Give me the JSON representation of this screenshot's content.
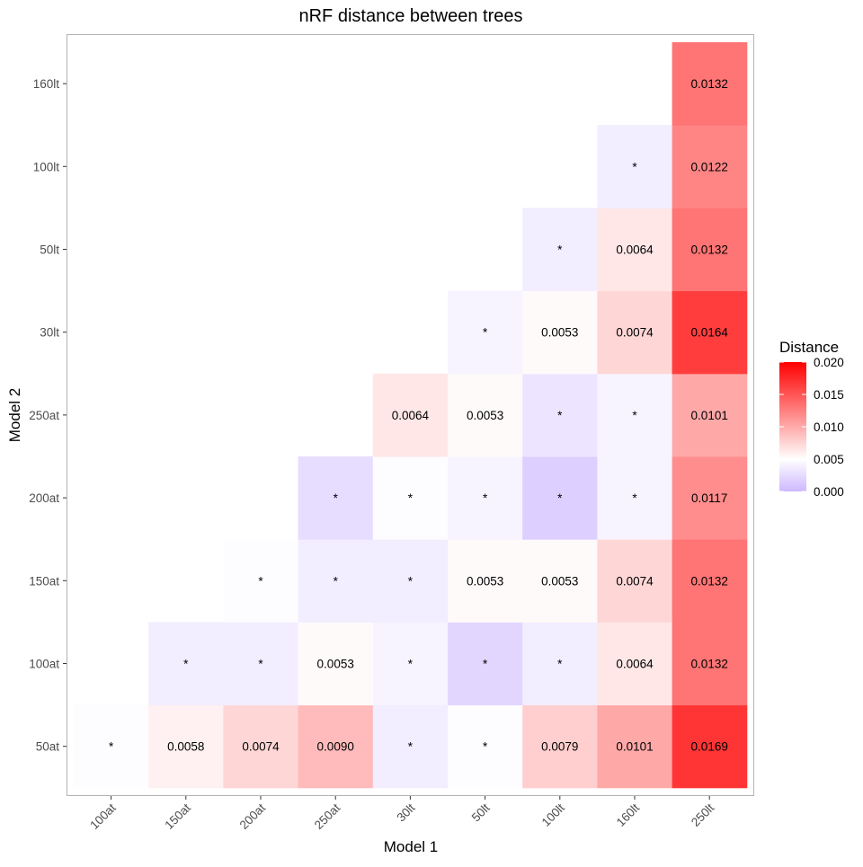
{
  "chart_data": {
    "type": "heatmap",
    "title": "nRF distance between trees",
    "xlabel": "Model 1",
    "ylabel": "Model 2",
    "x_categories": [
      "100at",
      "150at",
      "200at",
      "250at",
      "30lt",
      "50lt",
      "100lt",
      "160lt",
      "250lt"
    ],
    "y_categories": [
      "50at",
      "100at",
      "150at",
      "200at",
      "250at",
      "30lt",
      "50lt",
      "100lt",
      "160lt"
    ],
    "grid": false,
    "legend": {
      "title": "Distance",
      "position": "right",
      "ticks": [
        "0.000",
        "0.005",
        "0.010",
        "0.015",
        "0.020"
      ],
      "min": 0.0,
      "max": 0.02,
      "colors": {
        "low": "#cdb8ff",
        "mid": "#ffffff",
        "high": "#ff0000"
      }
    },
    "significance_label": "*",
    "cells": [
      {
        "x": "100at",
        "y": "50at",
        "value": 0.0048,
        "label": "*"
      },
      {
        "x": "150at",
        "y": "50at",
        "value": 0.0058,
        "label": "0.0058"
      },
      {
        "x": "200at",
        "y": "50at",
        "value": 0.0074,
        "label": "0.0074"
      },
      {
        "x": "250at",
        "y": "50at",
        "value": 0.009,
        "label": "0.0090"
      },
      {
        "x": "30lt",
        "y": "50at",
        "value": 0.0037,
        "label": "*"
      },
      {
        "x": "50lt",
        "y": "50at",
        "value": 0.0048,
        "label": "*"
      },
      {
        "x": "100lt",
        "y": "50at",
        "value": 0.0079,
        "label": "0.0079"
      },
      {
        "x": "160lt",
        "y": "50at",
        "value": 0.0101,
        "label": "0.0101"
      },
      {
        "x": "250lt",
        "y": "50at",
        "value": 0.0169,
        "label": "0.0169"
      },
      {
        "x": "150at",
        "y": "100at",
        "value": 0.0037,
        "label": "*"
      },
      {
        "x": "200at",
        "y": "100at",
        "value": 0.0037,
        "label": "*"
      },
      {
        "x": "250at",
        "y": "100at",
        "value": 0.0053,
        "label": "0.0053"
      },
      {
        "x": "30lt",
        "y": "100at",
        "value": 0.0042,
        "label": "*"
      },
      {
        "x": "50lt",
        "y": "100at",
        "value": 0.0021,
        "label": "*"
      },
      {
        "x": "100lt",
        "y": "100at",
        "value": 0.0037,
        "label": "*"
      },
      {
        "x": "160lt",
        "y": "100at",
        "value": 0.0064,
        "label": "0.0064"
      },
      {
        "x": "250lt",
        "y": "100at",
        "value": 0.0132,
        "label": "0.0132"
      },
      {
        "x": "200at",
        "y": "150at",
        "value": 0.0048,
        "label": "*"
      },
      {
        "x": "250at",
        "y": "150at",
        "value": 0.0037,
        "label": "*"
      },
      {
        "x": "30lt",
        "y": "150at",
        "value": 0.0037,
        "label": "*"
      },
      {
        "x": "50lt",
        "y": "150at",
        "value": 0.0053,
        "label": "0.0053"
      },
      {
        "x": "100lt",
        "y": "150at",
        "value": 0.0053,
        "label": "0.0053"
      },
      {
        "x": "160lt",
        "y": "150at",
        "value": 0.0074,
        "label": "0.0074"
      },
      {
        "x": "250lt",
        "y": "150at",
        "value": 0.0132,
        "label": "0.0132"
      },
      {
        "x": "250at",
        "y": "200at",
        "value": 0.0026,
        "label": "*"
      },
      {
        "x": "30lt",
        "y": "200at",
        "value": 0.0048,
        "label": "*"
      },
      {
        "x": "50lt",
        "y": "200at",
        "value": 0.0042,
        "label": "*"
      },
      {
        "x": "100lt",
        "y": "200at",
        "value": 0.0016,
        "label": "*"
      },
      {
        "x": "160lt",
        "y": "200at",
        "value": 0.0042,
        "label": "*"
      },
      {
        "x": "250lt",
        "y": "200at",
        "value": 0.0117,
        "label": "0.0117"
      },
      {
        "x": "30lt",
        "y": "250at",
        "value": 0.0064,
        "label": "0.0064"
      },
      {
        "x": "50lt",
        "y": "250at",
        "value": 0.0053,
        "label": "0.0053"
      },
      {
        "x": "100lt",
        "y": "250at",
        "value": 0.0032,
        "label": "*"
      },
      {
        "x": "160lt",
        "y": "250at",
        "value": 0.0042,
        "label": "*"
      },
      {
        "x": "250lt",
        "y": "250at",
        "value": 0.0101,
        "label": "0.0101"
      },
      {
        "x": "50lt",
        "y": "30lt",
        "value": 0.0042,
        "label": "*"
      },
      {
        "x": "100lt",
        "y": "30lt",
        "value": 0.0053,
        "label": "0.0053"
      },
      {
        "x": "160lt",
        "y": "30lt",
        "value": 0.0074,
        "label": "0.0074"
      },
      {
        "x": "250lt",
        "y": "30lt",
        "value": 0.0164,
        "label": "0.0164"
      },
      {
        "x": "100lt",
        "y": "50lt",
        "value": 0.0037,
        "label": "*"
      },
      {
        "x": "160lt",
        "y": "50lt",
        "value": 0.0064,
        "label": "0.0064"
      },
      {
        "x": "250lt",
        "y": "50lt",
        "value": 0.0132,
        "label": "0.0132"
      },
      {
        "x": "160lt",
        "y": "100lt",
        "value": 0.0037,
        "label": "*"
      },
      {
        "x": "250lt",
        "y": "100lt",
        "value": 0.0122,
        "label": "0.0122"
      },
      {
        "x": "250lt",
        "y": "160lt",
        "value": 0.0132,
        "label": "0.0132"
      }
    ]
  }
}
